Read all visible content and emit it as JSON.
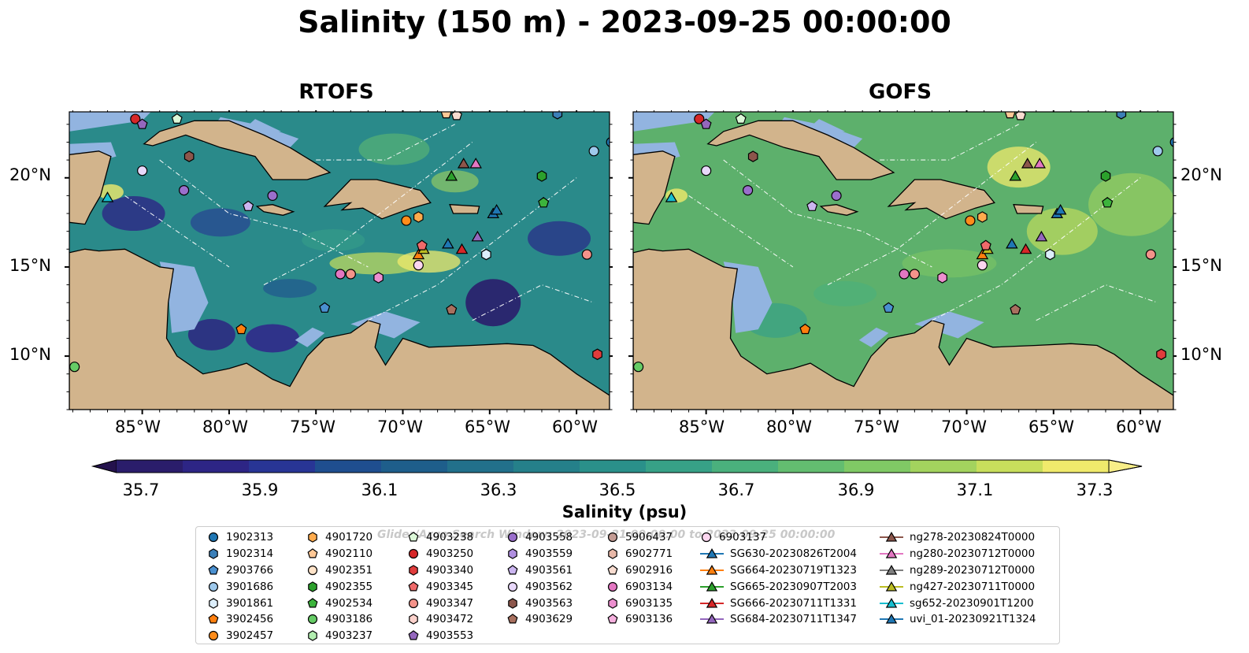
{
  "title": "Salinity (150 m) - 2023-09-25 00:00:00",
  "panels": [
    {
      "name": "RTOFS"
    },
    {
      "name": "GOFS"
    }
  ],
  "lon_ticks": [
    "85°W",
    "80°W",
    "75°W",
    "70°W",
    "65°W",
    "60°W"
  ],
  "lat_ticks": [
    "20°N",
    "15°N",
    "10°N"
  ],
  "colorbar": {
    "label": "Salinity (psu)",
    "ticks": [
      "35.7",
      "35.9",
      "36.1",
      "36.3",
      "36.5",
      "36.7",
      "36.9",
      "37.1",
      "37.3"
    ],
    "min": 35.6,
    "max": 37.4,
    "colors": [
      "#2a1d6b",
      "#2d2585",
      "#283595",
      "#1f4e8f",
      "#1e5e8b",
      "#22708b",
      "#25808a",
      "#2a908a",
      "#37a187",
      "#4ab07d",
      "#63bd70",
      "#80c965",
      "#a3d35e",
      "#c8de5c",
      "#f0ea6c"
    ],
    "extend_low_color": "#24124d",
    "extend_high_color": "#f8ee88"
  },
  "legend": {
    "watermark": "Glider/Argo Search Window: 2023-09-21 00:00:00 to 2023-09-25 00:00:00",
    "columns": [
      [
        {
          "label": "1902313",
          "marker": "circle",
          "color": "#1f77b4"
        },
        {
          "label": "1902314",
          "marker": "hexagon",
          "color": "#3b7fb8"
        },
        {
          "label": "2903766",
          "marker": "pentagon",
          "color": "#4a90d0"
        },
        {
          "label": "3901686",
          "marker": "circle",
          "color": "#9ec9ec"
        },
        {
          "label": "3901861",
          "marker": "hexagon",
          "color": "#dceefb"
        },
        {
          "label": "3902456",
          "marker": "pentagon",
          "color": "#ff7f0e"
        },
        {
          "label": "3902457",
          "marker": "circle",
          "color": "#ff8c1a"
        }
      ],
      [
        {
          "label": "4901720",
          "marker": "hexagon",
          "color": "#ffab4d"
        },
        {
          "label": "4902110",
          "marker": "pentagon",
          "color": "#ffc896"
        },
        {
          "label": "4902351",
          "marker": "circle",
          "color": "#ffe3c8"
        },
        {
          "label": "4902355",
          "marker": "hexagon",
          "color": "#2ca02c"
        },
        {
          "label": "4902534",
          "marker": "pentagon",
          "color": "#3cb43c"
        },
        {
          "label": "4903186",
          "marker": "circle",
          "color": "#66cc66"
        },
        {
          "label": "4903237",
          "marker": "hexagon",
          "color": "#b2eeb0"
        }
      ],
      [
        {
          "label": "4903238",
          "marker": "pentagon",
          "color": "#dcf8d8"
        },
        {
          "label": "4903250",
          "marker": "circle",
          "color": "#d62728"
        },
        {
          "label": "4903340",
          "marker": "hexagon",
          "color": "#e03c3c"
        },
        {
          "label": "4903345",
          "marker": "pentagon",
          "color": "#ef6a6a"
        },
        {
          "label": "4903347",
          "marker": "circle",
          "color": "#f4938a"
        },
        {
          "label": "4903472",
          "marker": "hexagon",
          "color": "#fcd2cc"
        },
        {
          "label": "4903553",
          "marker": "pentagon",
          "color": "#9467bd"
        }
      ],
      [
        {
          "label": "4903558",
          "marker": "circle",
          "color": "#9a6fcc"
        },
        {
          "label": "4903559",
          "marker": "hexagon",
          "color": "#b08fe0"
        },
        {
          "label": "4903561",
          "marker": "pentagon",
          "color": "#cbb5f0"
        },
        {
          "label": "4903562",
          "marker": "circle",
          "color": "#e8d8fa"
        },
        {
          "label": "4903563",
          "marker": "hexagon",
          "color": "#8c564b"
        },
        {
          "label": "4903629",
          "marker": "pentagon",
          "color": "#a8705f"
        }
      ],
      [
        {
          "label": "5906437",
          "marker": "circle",
          "color": "#c49c94"
        },
        {
          "label": "6902771",
          "marker": "hexagon",
          "color": "#e8b8a8"
        },
        {
          "label": "6902916",
          "marker": "pentagon",
          "color": "#f8dcd0"
        },
        {
          "label": "6903134",
          "marker": "circle",
          "color": "#e377c2"
        },
        {
          "label": "6903135",
          "marker": "hexagon",
          "color": "#ec8fcf"
        },
        {
          "label": "6903136",
          "marker": "pentagon",
          "color": "#f5b0de"
        }
      ],
      [
        {
          "label": "6903137",
          "marker": "circle",
          "color": "#fbd6ef"
        },
        {
          "label": "SG630-20230826T2004",
          "marker": "triangle",
          "color": "#1f77b4"
        },
        {
          "label": "SG664-20230719T1323",
          "marker": "triangle",
          "color": "#ff7f0e"
        },
        {
          "label": "SG665-20230907T2003",
          "marker": "triangle",
          "color": "#2ca02c"
        },
        {
          "label": "SG666-20230711T1331",
          "marker": "triangle",
          "color": "#d62728"
        },
        {
          "label": "SG684-20230711T1347",
          "marker": "triangle",
          "color": "#9467bd"
        }
      ],
      [
        {
          "label": "ng278-20230824T0000",
          "marker": "triangle",
          "color": "#8c564b"
        },
        {
          "label": "ng280-20230712T0000",
          "marker": "triangle",
          "color": "#e377c2"
        },
        {
          "label": "ng289-20230712T0000",
          "marker": "triangle",
          "color": "#7f7f7f"
        },
        {
          "label": "ng427-20230711T0000",
          "marker": "triangle",
          "color": "#bcbd22"
        },
        {
          "label": "sg652-20230901T1200",
          "marker": "triangle",
          "color": "#17becf"
        },
        {
          "label": "uvi_01-20230921T1324",
          "marker": "triangle",
          "color": "#1f77b4"
        }
      ]
    ]
  },
  "map_colors": {
    "land": "#d2b48c",
    "shelf": "#92b4e0",
    "rtofs_background": "#2a8a8a",
    "gofs_background": "#5db06c"
  },
  "markers": [
    {
      "lon": -85.4,
      "lat": 23.3,
      "marker": "circle",
      "color": "#d62728"
    },
    {
      "lon": -85.0,
      "lat": 23.0,
      "marker": "pentagon",
      "color": "#9467bd"
    },
    {
      "lon": -83.0,
      "lat": 23.3,
      "marker": "pentagon",
      "color": "#dcf8d8"
    },
    {
      "lon": -82.3,
      "lat": 21.2,
      "marker": "hexagon",
      "color": "#8c564b"
    },
    {
      "lon": -85.0,
      "lat": 20.4,
      "marker": "circle",
      "color": "#e8d8fa"
    },
    {
      "lon": -82.6,
      "lat": 19.3,
      "marker": "circle",
      "color": "#9a6fcc"
    },
    {
      "lon": -87.0,
      "lat": 18.9,
      "marker": "triangle",
      "color": "#17becf"
    },
    {
      "lon": -77.5,
      "lat": 19.0,
      "marker": "circle",
      "color": "#9a6fcc"
    },
    {
      "lon": -78.9,
      "lat": 18.4,
      "marker": "pentagon",
      "color": "#cbb5f0"
    },
    {
      "lon": -67.2,
      "lat": 20.1,
      "marker": "triangle",
      "color": "#2ca02c"
    },
    {
      "lon": -66.5,
      "lat": 20.8,
      "marker": "triangle",
      "color": "#8c564b"
    },
    {
      "lon": -65.8,
      "lat": 20.8,
      "marker": "triangle",
      "color": "#e377c2"
    },
    {
      "lon": -62.0,
      "lat": 20.1,
      "marker": "hexagon",
      "color": "#2ca02c"
    },
    {
      "lon": -61.9,
      "lat": 18.6,
      "marker": "pentagon",
      "color": "#3cb43c"
    },
    {
      "lon": -61.1,
      "lat": 23.6,
      "marker": "hexagon",
      "color": "#3b7fb8"
    },
    {
      "lon": -59.0,
      "lat": 21.5,
      "marker": "circle",
      "color": "#9ec9ec"
    },
    {
      "lon": -58.0,
      "lat": 22.0,
      "marker": "circle",
      "color": "#1f77b4"
    },
    {
      "lon": -71.9,
      "lat": 24.0,
      "marker": "pentagon",
      "color": "#f5b0de"
    },
    {
      "lon": -67.5,
      "lat": 23.6,
      "marker": "pentagon",
      "color": "#ffc896"
    },
    {
      "lon": -66.9,
      "lat": 23.5,
      "marker": "pentagon",
      "color": "#f8dcd0"
    },
    {
      "lon": -69.8,
      "lat": 17.6,
      "marker": "circle",
      "color": "#ff8c1a"
    },
    {
      "lon": -69.1,
      "lat": 17.8,
      "marker": "hexagon",
      "color": "#ffab4d"
    },
    {
      "lon": -64.8,
      "lat": 18.0,
      "marker": "triangle",
      "color": "#1f77b4"
    },
    {
      "lon": -64.6,
      "lat": 18.2,
      "marker": "triangle",
      "color": "#1f77b4"
    },
    {
      "lon": -67.4,
      "lat": 16.3,
      "marker": "triangle",
      "color": "#1f77b4"
    },
    {
      "lon": -66.6,
      "lat": 16.0,
      "marker": "triangle",
      "color": "#d62728"
    },
    {
      "lon": -65.7,
      "lat": 16.7,
      "marker": "triangle",
      "color": "#9467bd"
    },
    {
      "lon": -69.1,
      "lat": 15.7,
      "marker": "triangle",
      "color": "#ff7f0e"
    },
    {
      "lon": -68.8,
      "lat": 16.0,
      "marker": "triangle",
      "color": "#bcbd22"
    },
    {
      "lon": -68.9,
      "lat": 16.2,
      "marker": "pentagon",
      "color": "#ef6a6a"
    },
    {
      "lon": -65.2,
      "lat": 15.7,
      "marker": "hexagon",
      "color": "#dceefb"
    },
    {
      "lon": -69.1,
      "lat": 15.1,
      "marker": "circle",
      "color": "#fbd6ef"
    },
    {
      "lon": -59.4,
      "lat": 15.7,
      "marker": "circle",
      "color": "#f4938a"
    },
    {
      "lon": -73.6,
      "lat": 14.6,
      "marker": "circle",
      "color": "#e377c2"
    },
    {
      "lon": -73.0,
      "lat": 14.6,
      "marker": "circle",
      "color": "#f4938a"
    },
    {
      "lon": -71.4,
      "lat": 14.4,
      "marker": "hexagon",
      "color": "#ec8fcf"
    },
    {
      "lon": -74.5,
      "lat": 12.7,
      "marker": "pentagon",
      "color": "#4a90d0"
    },
    {
      "lon": -67.2,
      "lat": 12.6,
      "marker": "pentagon",
      "color": "#a8705f"
    },
    {
      "lon": -79.3,
      "lat": 11.5,
      "marker": "pentagon",
      "color": "#ff7f0e"
    },
    {
      "lon": -58.8,
      "lat": 10.1,
      "marker": "hexagon",
      "color": "#e03c3c"
    },
    {
      "lon": -88.9,
      "lat": 9.4,
      "marker": "circle",
      "color": "#66cc66"
    }
  ]
}
